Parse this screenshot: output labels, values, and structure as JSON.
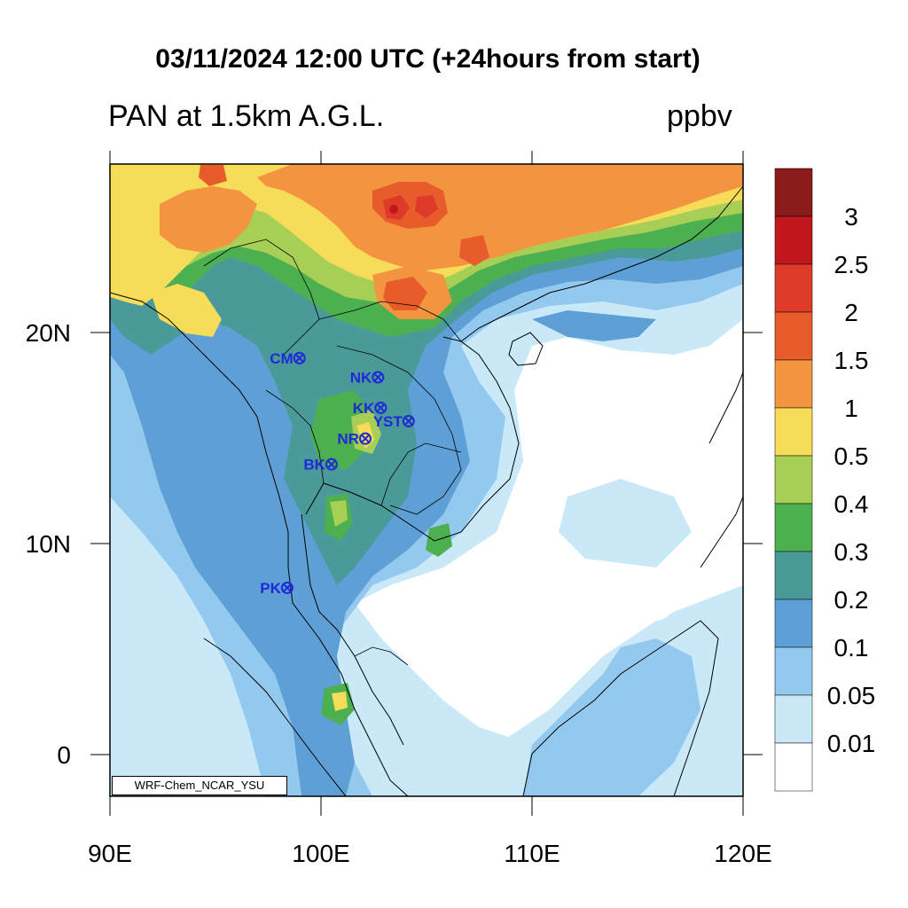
{
  "figure": {
    "title": "03/11/2024 12:00 UTC (+24hours from start)",
    "subtitle": "PAN at 1.5km A.G.L.",
    "unit": "ppbv",
    "watermark": "WRF-Chem_NCAR_YSU"
  },
  "axes": {
    "x_ticks": [
      "90E",
      "100E",
      "110E",
      "120E"
    ],
    "y_ticks": [
      "20N",
      "10N",
      "0"
    ]
  },
  "colorbar": {
    "levels": [
      "3",
      "2.5",
      "2",
      "1.5",
      "1",
      "0.5",
      "0.4",
      "0.3",
      "0.2",
      "0.1",
      "0.05",
      "0.01"
    ],
    "colors": [
      "#8b1a1a",
      "#c2171c",
      "#dd3a29",
      "#e85b2a",
      "#f39540",
      "#f7dc5a",
      "#a8cf55",
      "#4caf50",
      "#4a9a9a",
      "#5e9fd6",
      "#93c9ee",
      "#c9e8f8",
      "#ffffff"
    ]
  },
  "stations": [
    {
      "code": "CM",
      "lon": 98.98,
      "lat": 18.79
    },
    {
      "code": "NK",
      "lon": 102.7,
      "lat": 17.88
    },
    {
      "code": "KK",
      "lon": 102.83,
      "lat": 16.43
    },
    {
      "code": "YST",
      "lon": 104.15,
      "lat": 15.8
    },
    {
      "code": "NR",
      "lon": 102.1,
      "lat": 14.97
    },
    {
      "code": "BK",
      "lon": 100.5,
      "lat": 13.75
    },
    {
      "code": "PK",
      "lon": 98.4,
      "lat": 7.89
    }
  ]
}
